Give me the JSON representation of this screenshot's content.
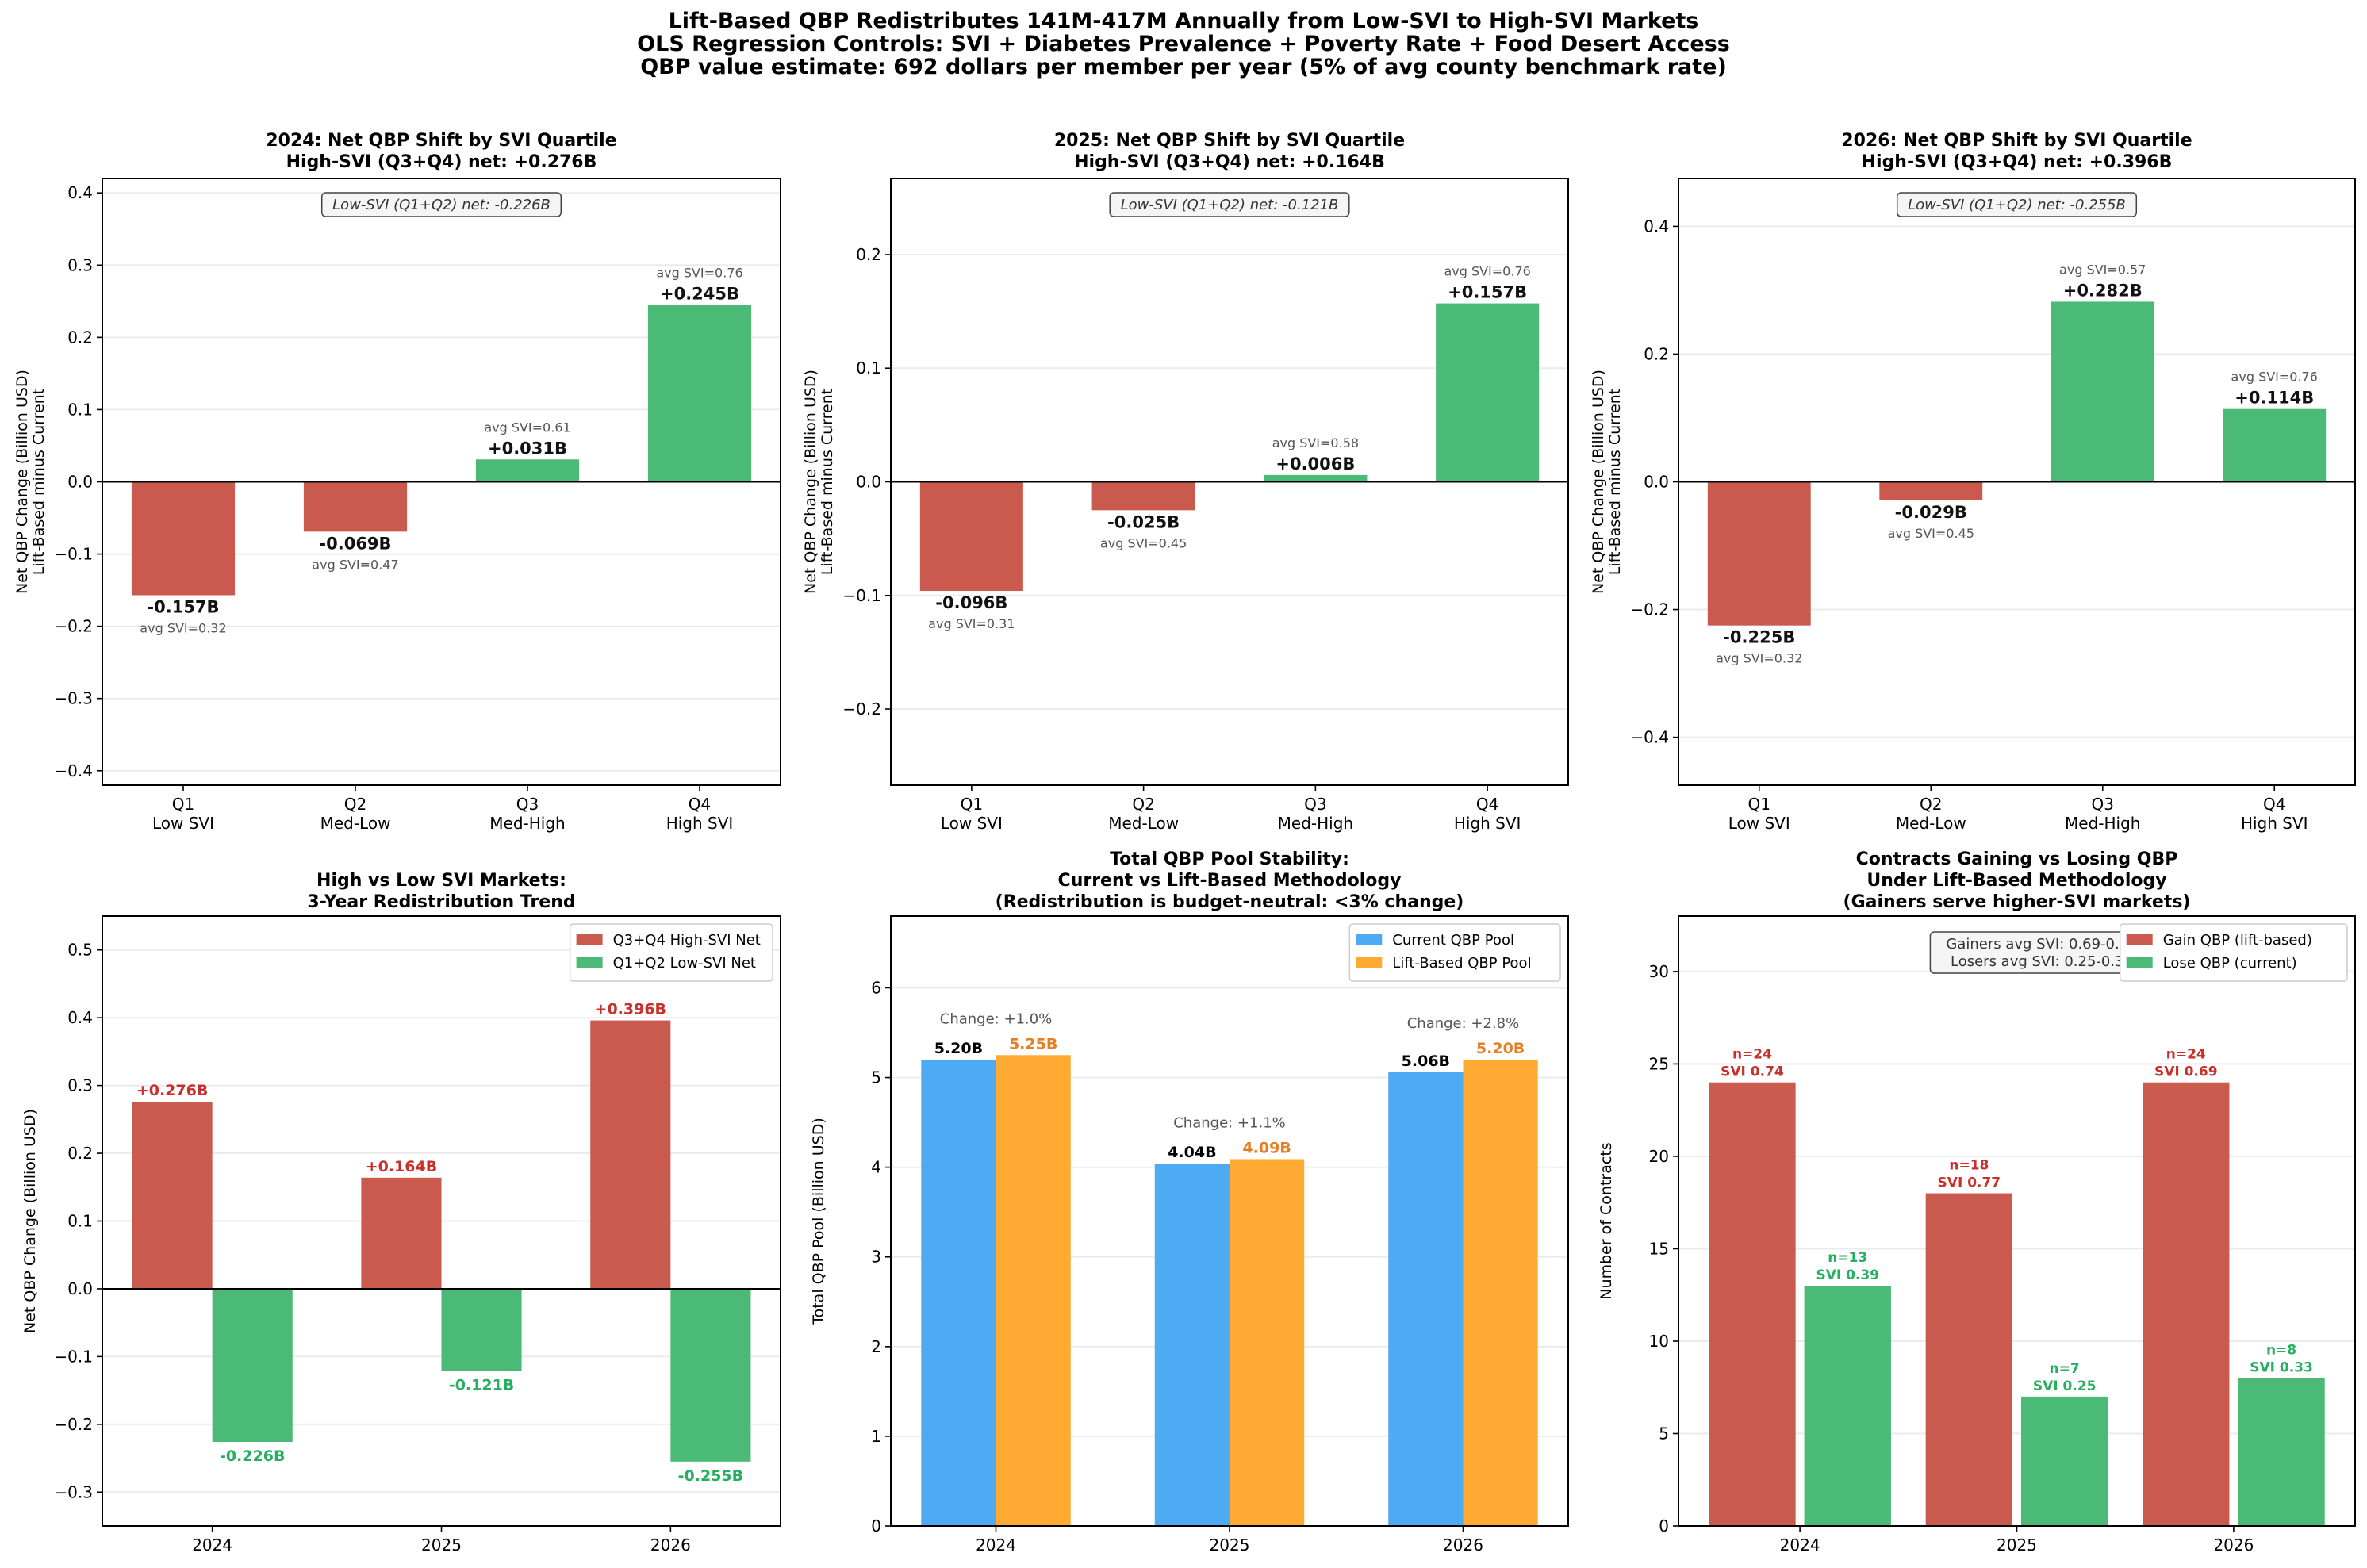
{
  "figure": {
    "title_lines": [
      "Lift-Based QBP Redistributes 141M-417M Annually from Low-SVI to High-SVI Markets",
      "OLS Regression Controls: SVI + Diabetes Prevalence + Poverty Rate + Food Desert Access",
      "QBP value estimate: 692 dollars per member per year (5% of avg county benchmark rate)"
    ]
  },
  "colors": {
    "red": "#cb5a4e",
    "green": "#4cba77",
    "blue": "#4eaaf2",
    "orange": "#ffaa33",
    "red_text": "#c9302c",
    "green_text": "#27ae60",
    "orange_text": "#e67e22"
  },
  "chart_data": [
    {
      "type": "bar",
      "title_lines": [
        "2024: Net QBP Shift by SVI Quartile",
        "High-SVI (Q3+Q4) net: +0.276B"
      ],
      "ylabel_lines": [
        "Net QBP Change (Billion USD)",
        "Lift-Based minus Current"
      ],
      "categories": [
        [
          "Q1",
          "Low SVI"
        ],
        [
          "Q2",
          "Med-Low"
        ],
        [
          "Q3",
          "Med-High"
        ],
        [
          "Q4",
          "High SVI"
        ]
      ],
      "series": [
        {
          "values": [
            -0.157,
            -0.069,
            0.031,
            0.245
          ],
          "labels": [
            [
              "-0.157B",
              "avg SVI=0.32"
            ],
            [
              "-0.069B",
              "avg SVI=0.47"
            ],
            [
              "+0.031B",
              "avg SVI=0.61"
            ],
            [
              "+0.245B",
              "avg SVI=0.76"
            ]
          ],
          "color_by_sign": true
        }
      ],
      "annotation": [
        "Low-SVI (Q1+Q2) net: -0.226B"
      ],
      "ylim": [
        -0.42,
        0.42
      ],
      "yticks": [
        -0.4,
        -0.3,
        -0.2,
        -0.1,
        0.0,
        0.1,
        0.2,
        0.3,
        0.4
      ],
      "grid": true
    },
    {
      "type": "bar",
      "title_lines": [
        "2025: Net QBP Shift by SVI Quartile",
        "High-SVI (Q3+Q4) net: +0.164B"
      ],
      "ylabel_lines": [
        "Net QBP Change (Billion USD)",
        "Lift-Based minus Current"
      ],
      "categories": [
        [
          "Q1",
          "Low SVI"
        ],
        [
          "Q2",
          "Med-Low"
        ],
        [
          "Q3",
          "Med-High"
        ],
        [
          "Q4",
          "High SVI"
        ]
      ],
      "series": [
        {
          "values": [
            -0.096,
            -0.025,
            0.006,
            0.157
          ],
          "labels": [
            [
              "-0.096B",
              "avg SVI=0.31"
            ],
            [
              "-0.025B",
              "avg SVI=0.45"
            ],
            [
              "+0.006B",
              "avg SVI=0.58"
            ],
            [
              "+0.157B",
              "avg SVI=0.76"
            ]
          ],
          "color_by_sign": true
        }
      ],
      "annotation": [
        "Low-SVI (Q1+Q2) net: -0.121B"
      ],
      "ylim": [
        -0.267,
        0.267
      ],
      "yticks": [
        -0.2,
        -0.1,
        0.0,
        0.1,
        0.2
      ],
      "grid": true
    },
    {
      "type": "bar",
      "title_lines": [
        "2026: Net QBP Shift by SVI Quartile",
        "High-SVI (Q3+Q4) net: +0.396B"
      ],
      "ylabel_lines": [
        "Net QBP Change (Billion USD)",
        "Lift-Based minus Current"
      ],
      "categories": [
        [
          "Q1",
          "Low SVI"
        ],
        [
          "Q2",
          "Med-Low"
        ],
        [
          "Q3",
          "Med-High"
        ],
        [
          "Q4",
          "High SVI"
        ]
      ],
      "series": [
        {
          "values": [
            -0.225,
            -0.029,
            0.282,
            0.114
          ],
          "labels": [
            [
              "-0.225B",
              "avg SVI=0.32"
            ],
            [
              "-0.029B",
              "avg SVI=0.45"
            ],
            [
              "+0.282B",
              "avg SVI=0.57"
            ],
            [
              "+0.114B",
              "avg SVI=0.76"
            ]
          ],
          "color_by_sign": true
        }
      ],
      "annotation": [
        "Low-SVI (Q1+Q2) net: -0.255B"
      ],
      "ylim": [
        -0.475,
        0.475
      ],
      "yticks": [
        -0.4,
        -0.2,
        0.0,
        0.2,
        0.4
      ],
      "grid": true
    },
    {
      "type": "bar",
      "title_lines": [
        "High vs Low SVI Markets:",
        "3-Year Redistribution Trend"
      ],
      "ylabel_lines": [
        "Net QBP Change (Billion USD)"
      ],
      "categories": [
        [
          "2024"
        ],
        [
          "2025"
        ],
        [
          "2026"
        ]
      ],
      "series": [
        {
          "name": "Q3+Q4 High-SVI Net",
          "color": "red",
          "label_color": "red_text",
          "values": [
            0.276,
            0.164,
            0.396
          ],
          "labels": [
            [
              "+0.276B"
            ],
            [
              "+0.164B"
            ],
            [
              "+0.396B"
            ]
          ]
        },
        {
          "name": "Q1+Q2 Low-SVI Net",
          "color": "green",
          "label_color": "green_text",
          "values": [
            -0.226,
            -0.121,
            -0.255
          ],
          "labels": [
            [
              "-0.226B"
            ],
            [
              "-0.121B"
            ],
            [
              "-0.255B"
            ]
          ]
        }
      ],
      "legend": "top-right",
      "ylim": [
        -0.35,
        0.55
      ],
      "yticks": [
        -0.3,
        -0.2,
        -0.1,
        0.0,
        0.1,
        0.2,
        0.3,
        0.4,
        0.5
      ],
      "grid": true
    },
    {
      "type": "bar",
      "title_lines": [
        "Total QBP Pool Stability:",
        "Current vs Lift-Based Methodology",
        "(Redistribution is budget-neutral: <3% change)"
      ],
      "ylabel_lines": [
        "Total QBP Pool (Billion USD)"
      ],
      "categories": [
        [
          "2024"
        ],
        [
          "2025"
        ],
        [
          "2026"
        ]
      ],
      "series": [
        {
          "name": "Current QBP Pool",
          "color": "blue",
          "label_color": "black",
          "values": [
            5.2,
            4.04,
            5.06
          ],
          "labels": [
            [
              "5.20B"
            ],
            [
              "4.04B"
            ],
            [
              "5.06B"
            ]
          ]
        },
        {
          "name": "Lift-Based QBP Pool",
          "color": "orange",
          "label_color": "orange_text",
          "values": [
            5.25,
            4.09,
            5.2
          ],
          "labels": [
            [
              "5.25B"
            ],
            [
              "4.09B"
            ],
            [
              "5.20B"
            ]
          ]
        }
      ],
      "group_annotations": [
        "Change: +1.0%",
        "Change: +1.1%",
        "Change: +2.8%"
      ],
      "legend": "top-right",
      "ylim": [
        0,
        6.8
      ],
      "yticks": [
        0,
        1,
        2,
        3,
        4,
        5,
        6
      ],
      "grid": true
    },
    {
      "type": "bar",
      "title_lines": [
        "Contracts Gaining vs Losing QBP",
        "Under Lift-Based Methodology",
        "(Gainers serve higher-SVI markets)"
      ],
      "ylabel_lines": [
        "Number of Contracts"
      ],
      "categories": [
        [
          "2024"
        ],
        [
          "2025"
        ],
        [
          "2026"
        ]
      ],
      "series": [
        {
          "name": "Gain QBP (lift-based)",
          "color": "red",
          "label_color": "red_text",
          "values": [
            24,
            18,
            24
          ],
          "labels": [
            [
              "n=24",
              "SVI 0.74"
            ],
            [
              "n=18",
              "SVI 0.77"
            ],
            [
              "n=24",
              "SVI 0.69"
            ]
          ]
        },
        {
          "name": "Lose QBP (current)",
          "color": "green",
          "label_color": "green_text",
          "values": [
            13,
            7,
            8
          ],
          "labels": [
            [
              "n=13",
              "SVI 0.39"
            ],
            [
              "n=7",
              "SVI 0.25"
            ],
            [
              "n=8",
              "SVI 0.33"
            ]
          ]
        }
      ],
      "annotation": [
        "Gainers avg SVI: 0.69-0.77",
        "Losers avg SVI: 0.25-0.39"
      ],
      "legend": "top-right",
      "ylim": [
        0,
        33
      ],
      "yticks": [
        0,
        5,
        10,
        15,
        20,
        25,
        30
      ],
      "grid": true
    }
  ]
}
